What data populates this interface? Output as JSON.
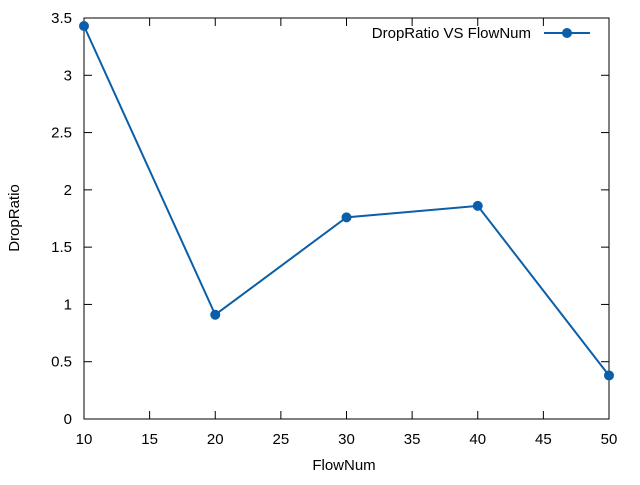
{
  "chart_data": {
    "type": "line",
    "title": "",
    "xlabel": "FlowNum",
    "ylabel": "DropRatio",
    "xlim": [
      10,
      50
    ],
    "ylim": [
      0,
      3.5
    ],
    "xticks": [
      10,
      15,
      20,
      25,
      30,
      35,
      40,
      45,
      50
    ],
    "yticks": [
      0,
      0.5,
      1,
      1.5,
      2,
      2.5,
      3,
      3.5
    ],
    "xtick_labels": [
      "10",
      "15",
      "20",
      "25",
      "30",
      "35",
      "40",
      "45",
      "50"
    ],
    "ytick_labels": [
      "0",
      "0.5",
      "1",
      "1.5",
      "2",
      "2.5",
      "3",
      "3.5"
    ],
    "grid": false,
    "legend_position": "top-right",
    "series": [
      {
        "name": "DropRatio VS FlowNum",
        "color": "#0a5fa8",
        "marker": "circle",
        "x": [
          10,
          20,
          30,
          40,
          50
        ],
        "y": [
          3.43,
          0.91,
          1.76,
          1.86,
          0.38
        ]
      }
    ]
  }
}
